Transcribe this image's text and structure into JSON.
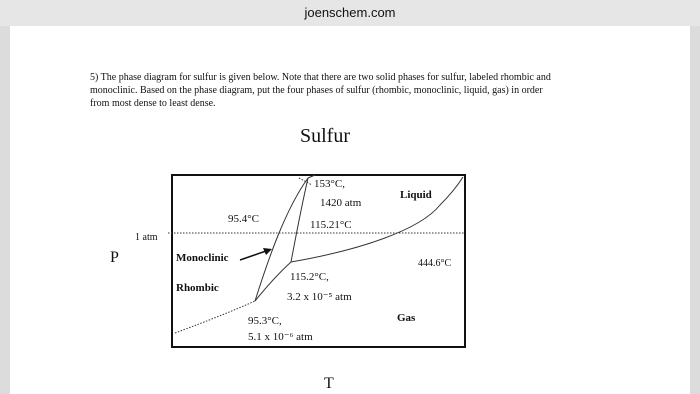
{
  "header": {
    "url": "joenschem.com"
  },
  "question": {
    "lines": [
      "5) The phase diagram for sulfur is given below.  Note that there are two solid phases for sulfur, labeled rhombic and",
      "monoclinic.  Based on the phase diagram, put the four phases of sulfur (rhombic, monoclinic, liquid, gas) in order",
      "from most dense to least dense."
    ]
  },
  "diagram": {
    "title": "Sulfur",
    "y_axis_label": "P",
    "x_axis_label": "T",
    "pressure_label": "1 atm",
    "regions": {
      "liquid": "Liquid",
      "monoclinic": "Monoclinic",
      "rhombic": "Rhombic",
      "gas": "Gas"
    },
    "annotations": {
      "top_point_temp": "153°C,",
      "top_point_pressure": "1420 atm",
      "rhombic_monoclinic_1atm": "95.4°C",
      "monoclinic_liquid_1atm": "115.21°C",
      "boiling_point": "444.6°C",
      "middle_point_temp": "115.2°C,",
      "middle_point_pressure": "3.2 x 10⁻⁵ atm",
      "low_point_temp": "95.3°C,",
      "low_point_pressure": "5.1 x 10⁻⁶ atm"
    }
  }
}
